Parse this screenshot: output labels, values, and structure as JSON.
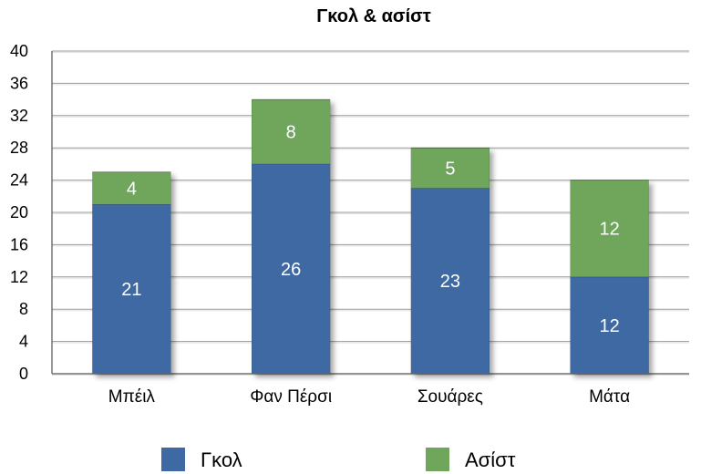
{
  "chart_data": {
    "type": "bar",
    "stacked": true,
    "title": "Γκολ & ασίστ",
    "xlabel": "",
    "ylabel": "",
    "categories": [
      "Μπέιλ",
      "Φαν Πέρσι",
      "Σουάρες",
      "Μάτα"
    ],
    "series": [
      {
        "name": "Γκολ",
        "color": "#3f69a3",
        "values": [
          21,
          26,
          23,
          12
        ]
      },
      {
        "name": "Ασίστ",
        "color": "#6fa65c",
        "values": [
          4,
          8,
          5,
          12
        ]
      }
    ],
    "ylim": [
      0,
      40
    ],
    "yticks": [
      0,
      4,
      8,
      12,
      16,
      20,
      24,
      28,
      32,
      36,
      40
    ],
    "grid": true,
    "legend": "bottom",
    "data_labels": true
  }
}
